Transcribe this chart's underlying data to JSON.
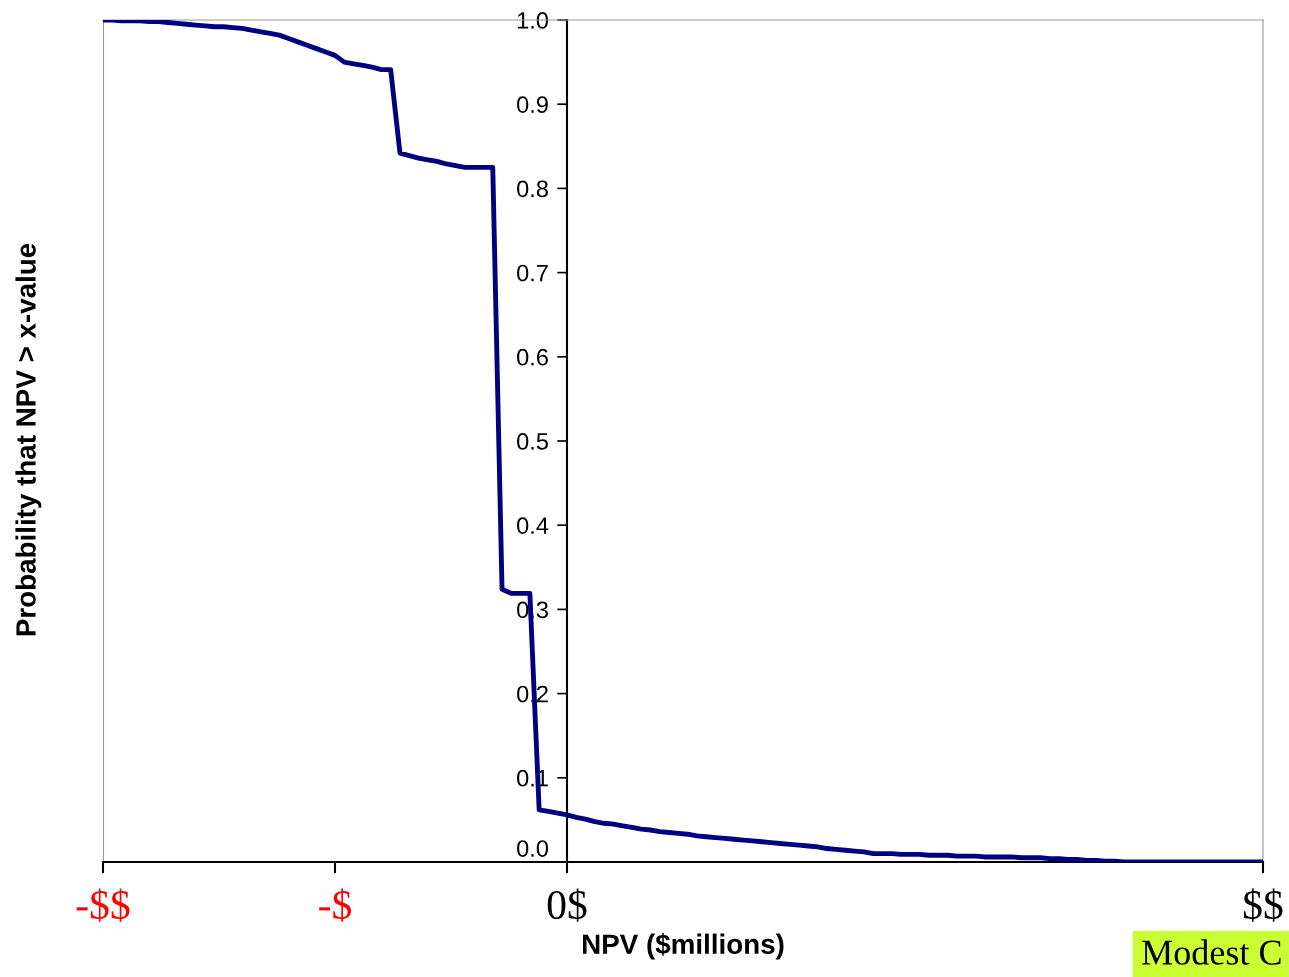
{
  "chart_data": {
    "type": "line",
    "xlabel": "NPV ($millions)",
    "ylabel": "Probability that NPV > x-value",
    "categories": [
      "-$$",
      null,
      null,
      null,
      null,
      null,
      null,
      null,
      null,
      null,
      null,
      null,
      null,
      null,
      null,
      null,
      null,
      null,
      null,
      null,
      null,
      null,
      null,
      null,
      null,
      "-$",
      null,
      null,
      null,
      null,
      null,
      null,
      null,
      null,
      null,
      null,
      null,
      null,
      null,
      null,
      null,
      null,
      null,
      null,
      null,
      null,
      null,
      null,
      null,
      null,
      "0$",
      null,
      null,
      null,
      null,
      null,
      null,
      null,
      null,
      null,
      null,
      null,
      null,
      null,
      null,
      null,
      null,
      null,
      null,
      null,
      null,
      null,
      null,
      null,
      null,
      null,
      null,
      null,
      null,
      null,
      null,
      null,
      null,
      null,
      null,
      null,
      null,
      null,
      null,
      null,
      null,
      null,
      null,
      null,
      null,
      null,
      null,
      null,
      null,
      null,
      null,
      null,
      null,
      null,
      null,
      null,
      null,
      null,
      null,
      null,
      null,
      null,
      null,
      null,
      null,
      null,
      null,
      null,
      null,
      null,
      null,
      null,
      null,
      null,
      null,
      "$$"
    ],
    "series": [
      {
        "color": "#000080",
        "values": [
          1.0,
          1.0,
          0.999,
          0.999,
          0.999,
          0.998,
          0.998,
          0.997,
          0.996,
          0.995,
          0.994,
          0.993,
          0.992,
          0.992,
          0.991,
          0.99,
          0.988,
          0.986,
          0.984,
          0.982,
          0.978,
          0.974,
          0.97,
          0.966,
          0.962,
          0.958,
          0.95,
          0.948,
          0.946,
          0.944,
          0.941,
          0.941,
          0.842,
          0.839,
          0.836,
          0.834,
          0.832,
          0.829,
          0.827,
          0.825,
          0.825,
          0.825,
          0.825,
          0.324,
          0.319,
          0.319,
          0.319,
          0.062,
          0.06,
          0.058,
          0.056,
          0.053,
          0.051,
          0.048,
          0.046,
          0.045,
          0.043,
          0.041,
          0.039,
          0.038,
          0.036,
          0.035,
          0.034,
          0.033,
          0.031,
          0.03,
          0.029,
          0.028,
          0.027,
          0.026,
          0.025,
          0.024,
          0.023,
          0.022,
          0.021,
          0.02,
          0.019,
          0.018,
          0.016,
          0.015,
          0.014,
          0.013,
          0.012,
          0.01,
          0.01,
          0.01,
          0.009,
          0.009,
          0.009,
          0.008,
          0.008,
          0.008,
          0.007,
          0.007,
          0.007,
          0.006,
          0.006,
          0.006,
          0.006,
          0.005,
          0.005,
          0.005,
          0.004,
          0.004,
          0.003,
          0.003,
          0.002,
          0.002,
          0.001,
          0.001,
          0.0,
          0.0,
          0.0,
          0.0,
          0.0,
          0.0,
          0.0,
          0.0,
          0.0,
          0.0,
          0.0,
          0.0,
          0.0,
          0.0,
          0.0,
          0.0
        ]
      }
    ],
    "ylim": [
      0,
      1
    ],
    "yticks": [
      {
        "value": 0,
        "label": "0.0"
      },
      {
        "value": 0.1,
        "label": "0.1"
      },
      {
        "value": 0.2,
        "label": "0.2"
      },
      {
        "value": 0.3,
        "label": "0.3"
      },
      {
        "value": 0.4,
        "label": "0.4"
      },
      {
        "value": 0.5,
        "label": "0.5"
      },
      {
        "value": 0.6,
        "label": "0.6"
      },
      {
        "value": 0.7,
        "label": "0.7"
      },
      {
        "value": 0.8,
        "label": "0.8"
      },
      {
        "value": 0.9,
        "label": "0.9"
      },
      {
        "value": 1,
        "label": "1.0"
      }
    ],
    "grid": false,
    "legend": false,
    "marker": "none",
    "line_style": "solid",
    "annotations": [
      "Modest C"
    ]
  }
}
